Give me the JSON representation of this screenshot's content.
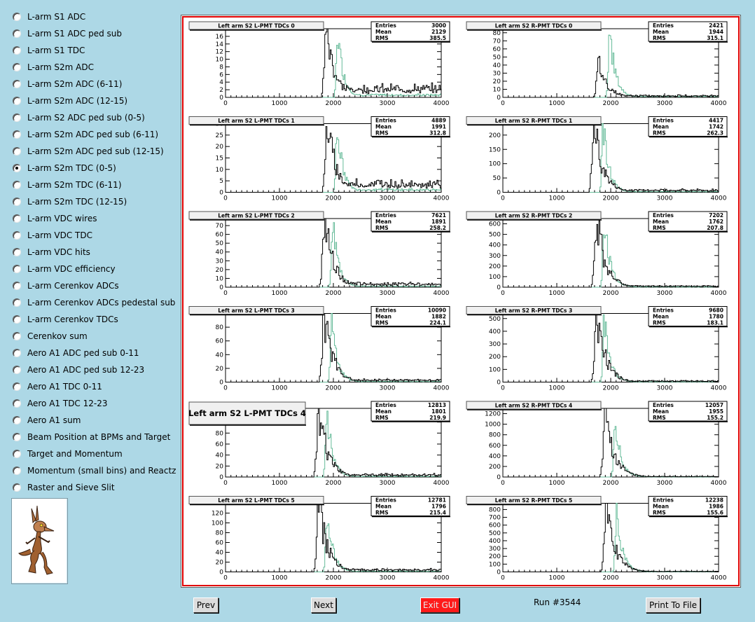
{
  "menu": [
    {
      "label": "L-arm S1 ADC",
      "selected": false
    },
    {
      "label": "L-arm S1 ADC ped sub",
      "selected": false
    },
    {
      "label": "L-arm S1 TDC",
      "selected": false
    },
    {
      "label": "L-arm S2m ADC",
      "selected": false
    },
    {
      "label": "L-arm S2m ADC (6-11)",
      "selected": false
    },
    {
      "label": "L-arm S2m ADC (12-15)",
      "selected": false
    },
    {
      "label": "L-arm S2 ADC ped sub (0-5)",
      "selected": false
    },
    {
      "label": "L-arm S2m ADC ped sub (6-11)",
      "selected": false
    },
    {
      "label": "L-arm S2m ADC ped sub (12-15)",
      "selected": false
    },
    {
      "label": "L-arm S2m TDC (0-5)",
      "selected": true
    },
    {
      "label": "L-arm S2m TDC (6-11)",
      "selected": false
    },
    {
      "label": "L-arm S2m TDC (12-15)",
      "selected": false
    },
    {
      "label": "L-arm VDC wires",
      "selected": false
    },
    {
      "label": "L-arm VDC TDC",
      "selected": false
    },
    {
      "label": "L-arm VDC hits",
      "selected": false
    },
    {
      "label": "L-arm VDC efficiency",
      "selected": false
    },
    {
      "label": "L-arm Cerenkov ADCs",
      "selected": false
    },
    {
      "label": "L-arm Cerenkov ADCs pedestal sub",
      "selected": false
    },
    {
      "label": "L-arm Cerenkov TDCs",
      "selected": false
    },
    {
      "label": "Cerenkov sum",
      "selected": false
    },
    {
      "label": "Aero A1 ADC ped sub 0-11",
      "selected": false
    },
    {
      "label": "Aero A1 ADC ped sub 12-23",
      "selected": false
    },
    {
      "label": "Aero A1 TDC 0-11",
      "selected": false
    },
    {
      "label": "Aero A1 TDC 12-23",
      "selected": false
    },
    {
      "label": "Aero A1 sum",
      "selected": false
    },
    {
      "label": "Beam Position at BPMs and Target",
      "selected": false
    },
    {
      "label": "Target and Momentum",
      "selected": false
    },
    {
      "label": "Momentum (small bins) and Reactz",
      "selected": false
    },
    {
      "label": "Raster and Sieve Slit",
      "selected": false
    }
  ],
  "mascot_icon": "coyote-mascot-icon",
  "buttons": {
    "prev": "Prev",
    "next": "Next",
    "exit": "Exit GUI",
    "print": "Print To File"
  },
  "run_label": "Run #3544",
  "colors": {
    "background": "#add8e6",
    "canvas_border": "#e00000",
    "exit_button": "#ff1a1a",
    "overlay_histogram": "#66bb99",
    "histogram": "#000000"
  },
  "chart_data": [
    {
      "type": "histogram",
      "title": "Left arm S2 L-PMT TDCs 0",
      "stats": {
        "Entries": "3000",
        "Mean": "2129",
        "RMS": "385.5"
      },
      "xlim": [
        0,
        4000
      ],
      "ylim": [
        0,
        18
      ],
      "yticks": [
        0,
        2,
        4,
        6,
        8,
        10,
        12,
        14,
        16
      ],
      "xticks": [
        0,
        1000,
        2000,
        3000,
        4000
      ],
      "peak_x": 1870,
      "peak_y": 18,
      "overlay_peak_x": 2080,
      "overlay_peak_y": 17,
      "tail_level": 0.08
    },
    {
      "type": "histogram",
      "title": "Left arm S2 R-PMT TDCs 0",
      "stats": {
        "Entries": "2421",
        "Mean": "1944",
        "RMS": "315.1"
      },
      "xlim": [
        0,
        4000
      ],
      "ylim": [
        0,
        85
      ],
      "yticks": [
        0,
        10,
        20,
        30,
        40,
        50,
        60,
        70,
        80
      ],
      "xticks": [
        0,
        1000,
        2000,
        3000,
        4000
      ],
      "peak_x": 1780,
      "peak_y": 43,
      "overlay_peak_x": 1980,
      "overlay_peak_y": 85,
      "tail_level": 0.03
    },
    {
      "type": "histogram",
      "title": "Left arm S2 L-PMT TDCs 1",
      "stats": {
        "Entries": "4889",
        "Mean": "1991",
        "RMS": "312.8"
      },
      "xlim": [
        0,
        4000
      ],
      "ylim": [
        0,
        30
      ],
      "yticks": [
        0,
        5,
        10,
        15,
        20,
        25,
        30
      ],
      "xticks": [
        0,
        1000,
        2000,
        3000,
        4000
      ],
      "peak_x": 1890,
      "peak_y": 30,
      "overlay_peak_x": 2070,
      "overlay_peak_y": 30,
      "tail_level": 0.08
    },
    {
      "type": "histogram",
      "title": "Left arm S2 R-PMT TDCs 1",
      "stats": {
        "Entries": "4417",
        "Mean": "1742",
        "RMS": "262.3"
      },
      "xlim": [
        0,
        4000
      ],
      "ylim": [
        0,
        240
      ],
      "yticks": [
        0,
        50,
        100,
        150,
        200
      ],
      "xticks": [
        0,
        1000,
        2000,
        3000,
        4000
      ],
      "peak_x": 1690,
      "peak_y": 240,
      "overlay_peak_x": 1860,
      "overlay_peak_y": 240,
      "tail_level": 0.02
    },
    {
      "type": "histogram",
      "title": "Left arm S2 L-PMT TDCs 2",
      "stats": {
        "Entries": "7621",
        "Mean": "1891",
        "RMS": "258.2"
      },
      "xlim": [
        0,
        4000
      ],
      "ylim": [
        0,
        78
      ],
      "yticks": [
        0,
        10,
        20,
        30,
        40,
        50,
        60,
        70
      ],
      "xticks": [
        0,
        1000,
        2000,
        3000,
        4000
      ],
      "peak_x": 1840,
      "peak_y": 78,
      "overlay_peak_x": 1990,
      "overlay_peak_y": 75,
      "tail_level": 0.03
    },
    {
      "type": "histogram",
      "title": "Left arm S2 R-PMT TDCs 2",
      "stats": {
        "Entries": "7202",
        "Mean": "1762",
        "RMS": "207.8"
      },
      "xlim": [
        0,
        4000
      ],
      "ylim": [
        0,
        650
      ],
      "yticks": [
        0,
        100,
        200,
        300,
        400,
        500,
        600
      ],
      "xticks": [
        0,
        1000,
        2000,
        3000,
        4000
      ],
      "peak_x": 1740,
      "peak_y": 650,
      "overlay_peak_x": 1880,
      "overlay_peak_y": 650,
      "tail_level": 0.01
    },
    {
      "type": "histogram",
      "title": "Left arm S2 L-PMT TDCs 3",
      "stats": {
        "Entries": "10090",
        "Mean": "1882",
        "RMS": "224.1"
      },
      "xlim": [
        0,
        4000
      ],
      "ylim": [
        0,
        100
      ],
      "yticks": [
        0,
        20,
        40,
        60,
        80
      ],
      "xticks": [
        0,
        1000,
        2000,
        3000,
        4000
      ],
      "peak_x": 1830,
      "peak_y": 100,
      "overlay_peak_x": 1970,
      "overlay_peak_y": 90,
      "tail_level": 0.02
    },
    {
      "type": "histogram",
      "title": "Left arm S2 R-PMT TDCs 3",
      "stats": {
        "Entries": "9680",
        "Mean": "1780",
        "RMS": "183.1"
      },
      "xlim": [
        0,
        4000
      ],
      "ylim": [
        0,
        540
      ],
      "yticks": [
        0,
        100,
        200,
        300,
        400,
        500
      ],
      "xticks": [
        0,
        1000,
        2000,
        3000,
        4000
      ],
      "peak_x": 1740,
      "peak_y": 540,
      "overlay_peak_x": 1880,
      "overlay_peak_y": 500,
      "tail_level": 0.01
    },
    {
      "type": "histogram",
      "title": "Left arm S2 L-PMT TDCs 4",
      "stats": {
        "Entries": "12813",
        "Mean": "1801",
        "RMS": "219.9"
      },
      "xlim": [
        0,
        4000
      ],
      "ylim": [
        0,
        125
      ],
      "yticks": [
        0,
        20,
        40,
        60,
        80,
        100,
        120
      ],
      "xticks": [
        0,
        1000,
        2000,
        3000,
        4000
      ],
      "peak_x": 1730,
      "peak_y": 125,
      "overlay_peak_x": 1880,
      "overlay_peak_y": 120,
      "tail_level": 0.02,
      "highlighted": true
    },
    {
      "type": "histogram",
      "title": "Left arm S2 R-PMT TDCs 4",
      "stats": {
        "Entries": "12057",
        "Mean": "1955",
        "RMS": "155.2"
      },
      "xlim": [
        0,
        4000
      ],
      "ylim": [
        0,
        1300
      ],
      "yticks": [
        0,
        200,
        400,
        600,
        800,
        1000,
        1200
      ],
      "xticks": [
        0,
        1000,
        2000,
        3000,
        4000
      ],
      "peak_x": 1900,
      "peak_y": 1300,
      "overlay_peak_x": 2080,
      "overlay_peak_y": 1150,
      "tail_level": 0.005
    },
    {
      "type": "histogram",
      "title": "Left arm S2 L-PMT TDCs 5",
      "stats": {
        "Entries": "12781",
        "Mean": "1796",
        "RMS": "215.4"
      },
      "xlim": [
        0,
        4000
      ],
      "ylim": [
        0,
        140
      ],
      "yticks": [
        0,
        20,
        40,
        60,
        80,
        100,
        120
      ],
      "xticks": [
        0,
        1000,
        2000,
        3000,
        4000
      ],
      "peak_x": 1730,
      "peak_y": 140,
      "overlay_peak_x": 1880,
      "overlay_peak_y": 130,
      "tail_level": 0.02
    },
    {
      "type": "histogram",
      "title": "Left arm S2 R-PMT TDCs 5",
      "stats": {
        "Entries": "12238",
        "Mean": "1986",
        "RMS": "155.6"
      },
      "xlim": [
        0,
        4000
      ],
      "ylim": [
        0,
        880
      ],
      "yticks": [
        0,
        100,
        200,
        300,
        400,
        500,
        600,
        700,
        800
      ],
      "xticks": [
        0,
        1000,
        2000,
        3000,
        4000
      ],
      "peak_x": 1920,
      "peak_y": 880,
      "overlay_peak_x": 2110,
      "overlay_peak_y": 760,
      "tail_level": 0.005
    }
  ]
}
